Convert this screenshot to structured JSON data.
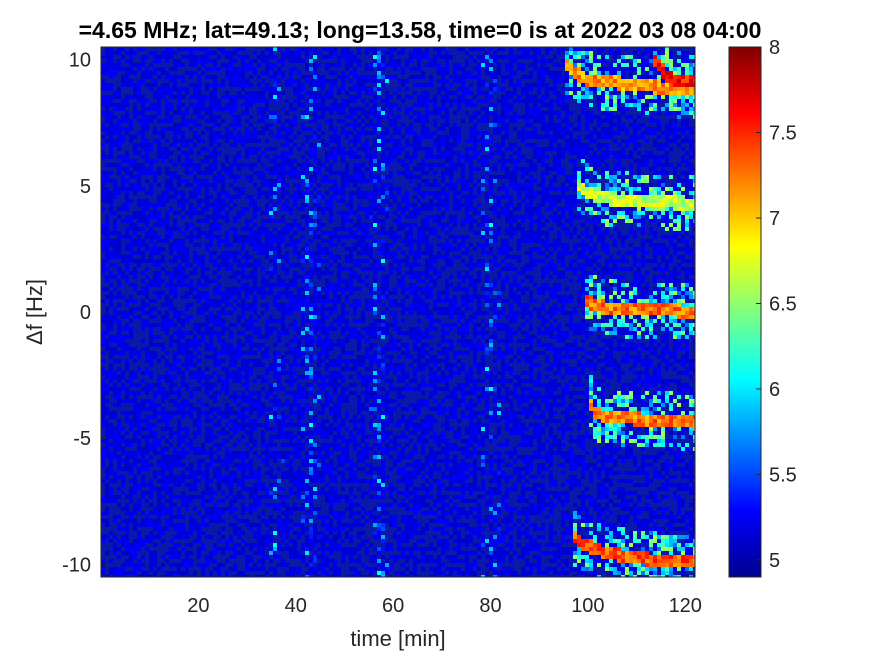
{
  "chart_data": {
    "type": "heatmap",
    "title": "=4.65 MHz;  lat=49.13; long=13.58, time=0 is at 2022 03 08 04:00",
    "xlabel": "time [min]",
    "ylabel": "Δf [Hz]",
    "xlim": [
      0,
      122
    ],
    "ylim": [
      -10.5,
      10.5
    ],
    "x_ticks": [
      20,
      40,
      60,
      80,
      100,
      120
    ],
    "y_ticks": [
      -10,
      -5,
      0,
      5,
      10
    ],
    "x_tick_labels": [
      "20",
      "40",
      "60",
      "80",
      "100",
      "120"
    ],
    "y_tick_labels": [
      "-10",
      "-5",
      "0",
      "5",
      "10"
    ],
    "colorbar": {
      "range": [
        4.9,
        8
      ],
      "ticks": [
        5,
        5.5,
        6,
        6.5,
        7,
        7.5,
        8
      ],
      "tick_labels": [
        "5",
        "5.5",
        "6",
        "6.5",
        "7",
        "7.5",
        "8"
      ],
      "colormap": "jet"
    },
    "background_level": 5.0,
    "vertical_noise_bands": [
      {
        "x": 36,
        "width": 1.5,
        "strength": 0.35
      },
      {
        "x": 43,
        "width": 2.0,
        "strength": 0.55
      },
      {
        "x": 57,
        "width": 2.0,
        "strength": 0.6
      },
      {
        "x": 80,
        "width": 2.5,
        "strength": 0.3
      }
    ],
    "traces": [
      {
        "center_y": 9.0,
        "points": [
          [
            95,
            9.9
          ],
          [
            97,
            9.5
          ],
          [
            100,
            9.2
          ],
          [
            105,
            9.1
          ],
          [
            110,
            9.0
          ],
          [
            115,
            8.9
          ],
          [
            120,
            8.8
          ],
          [
            122,
            8.8
          ]
        ],
        "peak": 7.4
      },
      {
        "center_y": 9.5,
        "points": [
          [
            113,
            10.4
          ],
          [
            114,
            9.9
          ],
          [
            116,
            9.4
          ],
          [
            118,
            9.2
          ],
          [
            122,
            9.1
          ]
        ],
        "peak": 7.8
      },
      {
        "center_y": 4.5,
        "points": [
          [
            98,
            5.1
          ],
          [
            100,
            4.7
          ],
          [
            104,
            4.5
          ],
          [
            110,
            4.4
          ],
          [
            115,
            4.4
          ],
          [
            120,
            4.3
          ],
          [
            122,
            4.3
          ]
        ],
        "peak": 6.9
      },
      {
        "center_y": 0.0,
        "points": [
          [
            99,
            0.9
          ],
          [
            100,
            0.4
          ],
          [
            103,
            0.2
          ],
          [
            108,
            0.1
          ],
          [
            112,
            0.1
          ],
          [
            116,
            0.1
          ],
          [
            120,
            0.0
          ],
          [
            122,
            0.0
          ]
        ],
        "peak": 7.5
      },
      {
        "center_y": -4.3,
        "points": [
          [
            100,
            -3.2
          ],
          [
            101,
            -3.9
          ],
          [
            103,
            -4.1
          ],
          [
            108,
            -4.2
          ],
          [
            114,
            -4.3
          ],
          [
            118,
            -4.3
          ],
          [
            122,
            -4.4
          ]
        ],
        "peak": 7.5
      },
      {
        "center_y": -9.5,
        "points": [
          [
            97,
            -8.9
          ],
          [
            99,
            -9.2
          ],
          [
            103,
            -9.5
          ],
          [
            108,
            -9.7
          ],
          [
            113,
            -9.8
          ],
          [
            118,
            -9.9
          ],
          [
            122,
            -9.9
          ]
        ],
        "peak": 7.6
      }
    ]
  }
}
